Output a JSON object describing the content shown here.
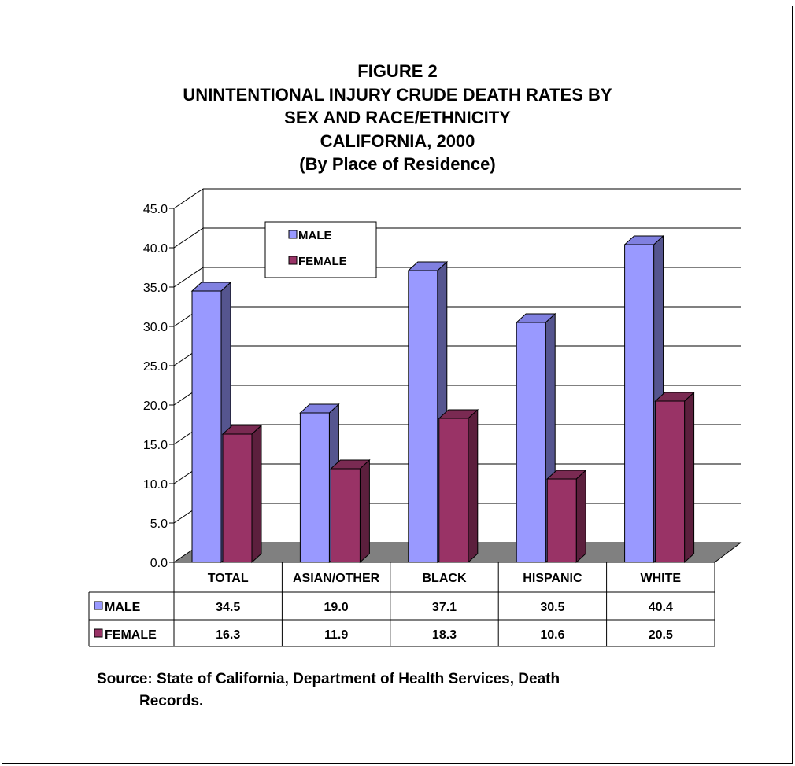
{
  "chart_data": {
    "type": "bar",
    "title_lines": [
      "FIGURE 2",
      "UNINTENTIONAL INJURY CRUDE DEATH RATES BY",
      "SEX AND RACE/ETHNICITY",
      "CALIFORNIA, 2000",
      "(By Place of Residence)"
    ],
    "categories": [
      "TOTAL",
      "ASIAN/OTHER",
      "BLACK",
      "HISPANIC",
      "WHITE"
    ],
    "series": [
      {
        "name": "MALE",
        "values": [
          34.5,
          19.0,
          37.1,
          30.5,
          40.4
        ]
      },
      {
        "name": "FEMALE",
        "values": [
          16.3,
          11.9,
          18.3,
          10.6,
          20.5
        ]
      }
    ],
    "y_ticks": [
      "0.0",
      "5.0",
      "10.0",
      "15.0",
      "20.0",
      "25.0",
      "30.0",
      "35.0",
      "40.0",
      "45.0"
    ],
    "ylim": [
      0,
      45
    ],
    "xlabel": "",
    "ylabel": "",
    "grid": true,
    "legend": "top-left",
    "data_table": true,
    "colors": {
      "male_front": "#9999ff",
      "male_side": "#55558f",
      "male_top": "#8080e0",
      "female_front": "#993366",
      "female_side": "#5c1f3d",
      "female_top": "#7a2a52",
      "floor": "#808080"
    }
  },
  "source": {
    "line1": "Source: State of California, Department of Health Services, Death",
    "line2": "Records."
  }
}
